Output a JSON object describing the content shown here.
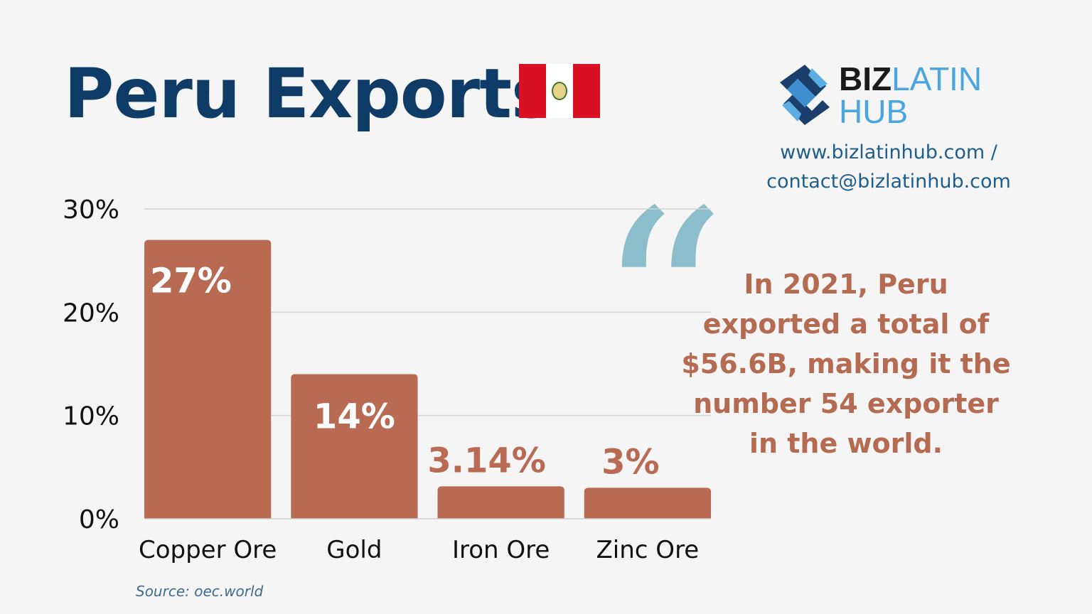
{
  "header": {
    "title": "Peru Exports",
    "flag_colors": [
      "#d91023",
      "#ffffff",
      "#d91023"
    ]
  },
  "logo": {
    "text_dark": "BIZ",
    "text_light": "LATIN",
    "text_line2": "HUB"
  },
  "contact": {
    "website": "www.bizlatinhub.com  /",
    "email": "contact@bizlatinhub.com"
  },
  "quote": {
    "mark": "“",
    "text": "In 2021, Peru exported a total of $56.6B, making it the number 54 exporter in the world."
  },
  "source": "Source: oec.world",
  "colors": {
    "bar": "#b86a52",
    "title": "#0f3c66",
    "quote_mark": "#8bbdca"
  },
  "chart_data": {
    "type": "bar",
    "title": "Peru Exports",
    "categories": [
      "Copper Ore",
      "Gold",
      "Iron Ore",
      "Zinc Ore"
    ],
    "values": [
      27,
      14,
      3.14,
      3
    ],
    "value_labels": [
      "27%",
      "14%",
      "3.14%",
      "3%"
    ],
    "ylim": [
      0,
      30
    ],
    "yticks": [
      0,
      10,
      20,
      30
    ],
    "ytick_labels": [
      "0%",
      "10%",
      "20%",
      "30%"
    ],
    "grid": true,
    "xlabel": "",
    "ylabel": ""
  }
}
